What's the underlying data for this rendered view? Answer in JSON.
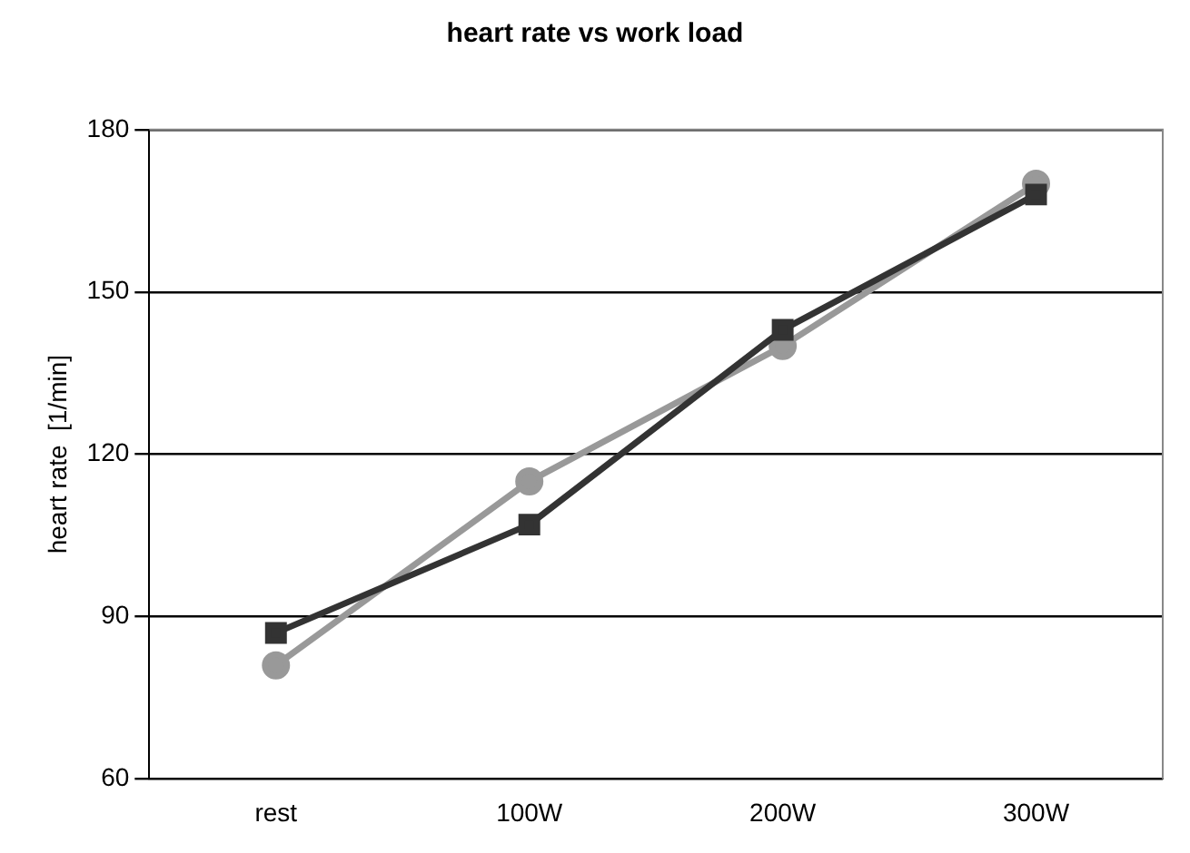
{
  "chart_data": {
    "type": "line",
    "title": "heart rate vs work load",
    "ylabel": "heart rate  [1/min]",
    "categories": [
      "rest",
      "100W",
      "200W",
      "300W"
    ],
    "series": [
      {
        "color": "#999999",
        "marker": "circle",
        "values": [
          81,
          115,
          140,
          170
        ]
      },
      {
        "color": "#333333",
        "marker": "square",
        "values": [
          87,
          107,
          143,
          168
        ]
      }
    ],
    "ylim": [
      60,
      180
    ],
    "yticks": [
      60,
      90,
      120,
      150,
      180
    ],
    "grid": "y"
  }
}
